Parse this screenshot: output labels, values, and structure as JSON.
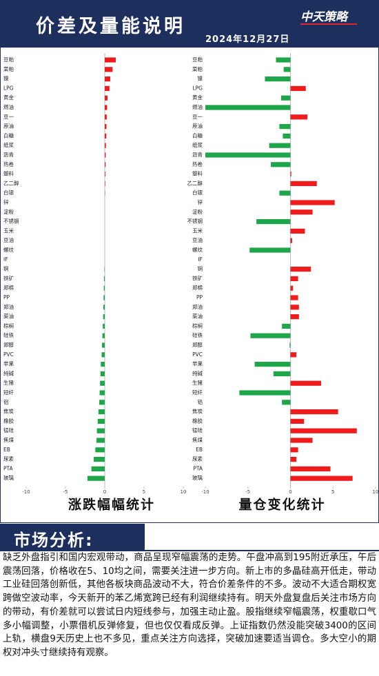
{
  "header": {
    "title": "价差及量能说明",
    "date": "2024年12月27日",
    "logo": "中天策略"
  },
  "chart_data": [
    {
      "type": "bar",
      "orientation": "horizontal",
      "title": "涨跌幅幅统计",
      "categories": [
        "豆粕",
        "菜粕",
        "镍",
        "LPG",
        "黄金",
        "燃油",
        "豆一",
        "原油",
        "白糖",
        "纸浆",
        "沥青",
        "热卷",
        "塑料",
        "乙二醇",
        "白银",
        "锌",
        "淀粉",
        "不锈钢",
        "玉米",
        "豆油",
        "螺纹",
        "IF",
        "铜",
        "铁矿",
        "郑棉",
        "PP",
        "郑油",
        "菜油",
        "棕榈",
        "硅铁",
        "郑醇",
        "PVC",
        "苹果",
        "纯碱",
        "生猪",
        "短纤",
        "铝",
        "焦炭",
        "橡胶",
        "锰硅",
        "焦煤",
        "EB",
        "尿素",
        "PTA",
        "玻璃"
      ],
      "values": [
        1.4,
        1.0,
        0.7,
        0.6,
        0.35,
        0.3,
        0.25,
        0.22,
        0.2,
        0.15,
        0.12,
        0.1,
        0.08,
        0.06,
        0.04,
        0,
        0,
        0,
        0,
        0,
        0,
        0,
        -0.05,
        -0.1,
        -0.12,
        -0.15,
        -0.18,
        -0.2,
        -0.25,
        -0.3,
        -0.35,
        -0.4,
        -0.5,
        -0.55,
        -0.6,
        -0.65,
        -0.7,
        -0.8,
        -0.9,
        -1.0,
        -1.05,
        -1.2,
        -1.4,
        -1.7,
        -2.2
      ],
      "xlim": [
        -10,
        10
      ],
      "xticks": [
        -10,
        -5,
        0,
        5,
        10
      ],
      "positive_color": "#ee1c1c",
      "negative_color": "#1fa64a"
    },
    {
      "type": "bar",
      "orientation": "horizontal",
      "title": "量仓变化统计",
      "categories": [
        "豆粕",
        "菜粕",
        "镍",
        "LPG",
        "黄金",
        "燃油",
        "豆一",
        "原油",
        "白糖",
        "纸浆",
        "沥青",
        "热卷",
        "塑料",
        "乙二醇",
        "白银",
        "锌",
        "淀粉",
        "不锈钢",
        "玉米",
        "豆油",
        "螺纹",
        "IF",
        "铜",
        "铁矿",
        "郑棉",
        "PP",
        "郑油",
        "菜油",
        "棕榈",
        "硅铁",
        "郑醇",
        "PVC",
        "苹果",
        "纯碱",
        "生猪",
        "短纤",
        "铝",
        "焦炭",
        "橡胶",
        "锰硅",
        "焦煤",
        "EB",
        "尿素",
        "PTA",
        "玻璃"
      ],
      "values": [
        -1.7,
        -0.8,
        -3.0,
        1.8,
        -1.1,
        -10,
        2.0,
        -1.3,
        -0.9,
        -2.5,
        -10,
        -2.3,
        0.1,
        3.1,
        -1.3,
        5.2,
        2.6,
        -4.0,
        1.7,
        0.2,
        -4.8,
        0,
        2.4,
        0.9,
        0.3,
        0.9,
        1.0,
        1.0,
        -1.0,
        -4.7,
        -0.1,
        0.7,
        -4.2,
        -2.0,
        3.6,
        -6.0,
        -1.0,
        5.6,
        1.6,
        7.8,
        2.6,
        0.9,
        0.7,
        4.7,
        7.3
      ],
      "xlim": [
        -10,
        10
      ],
      "xticks": [
        -10,
        -5,
        0,
        5,
        10
      ],
      "positive_color": "#ee1c1c",
      "negative_color": "#1fa64a"
    }
  ],
  "analysis": {
    "heading": "市场分析:",
    "text": "缺乏外盘指引和国内宏观带动，商品呈现窄幅震荡的走势。午盘冲高到195附近承压，午后震荡回落，价格收在5、10均之间，需要关注进一步方向。新上市的多晶硅高开低走，带动工业硅回落创新低，其他各板块商品波动不大，符合价差条件的不多。波动不大适合期权宽跨做空波动率，今天新开的苯乙烯宽跨已经有利润继续持有。明天外盘复盘后关注市场方向的带动，有价差就可以尝试日内短线参与，加强主动止盈。股指继续窄幅震荡，权重歇口气多小幅调整，小票借机反弹修复，但也仅仅看成反弹。上证指数仍然没能突破3400的区间上轨，横盘9天历史上也不多见，重点关注方向选择，突破加速要适当调仓。多大空小的期权对冲头寸继续持有观察。"
  }
}
